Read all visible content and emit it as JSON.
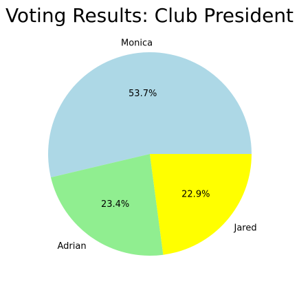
{
  "chart_data": {
    "type": "pie",
    "title": "Voting Results: Club President",
    "categories": [
      "Monica",
      "Adrian",
      "Jared"
    ],
    "values": [
      53.7,
      23.4,
      22.9
    ],
    "value_labels": [
      "53.7%",
      "23.4%",
      "22.9%"
    ],
    "colors": [
      "#add8e6",
      "#90ee90",
      "#ffff00"
    ],
    "start_angle_deg": 0,
    "direction": "counterclockwise",
    "legend": "none"
  }
}
